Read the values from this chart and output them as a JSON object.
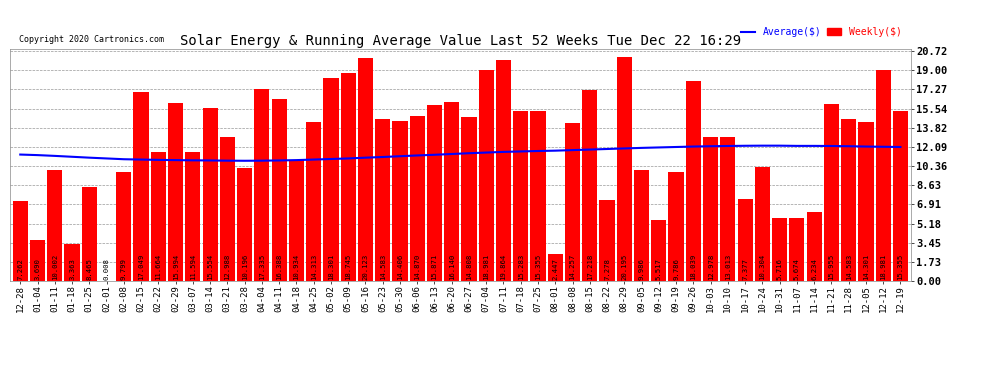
{
  "title": "Solar Energy & Running Average Value Last 52 Weeks Tue Dec 22 16:29",
  "copyright": "Copyright 2020 Cartronics.com",
  "legend_avg": "Average($)",
  "legend_weekly": "Weekly($)",
  "ytick_labels": [
    "0.00",
    "1.73",
    "3.45",
    "5.18",
    "6.91",
    "8.63",
    "10.36",
    "12.09",
    "13.82",
    "15.54",
    "17.27",
    "19.00",
    "20.72"
  ],
  "ytick_values": [
    0.0,
    1.73,
    3.45,
    5.18,
    6.91,
    8.63,
    10.36,
    12.09,
    13.82,
    15.54,
    17.27,
    19.0,
    20.72
  ],
  "categories": [
    "12-28",
    "01-04",
    "01-11",
    "01-18",
    "01-25",
    "02-01",
    "02-08",
    "02-15",
    "02-22",
    "02-29",
    "03-07",
    "03-14",
    "03-21",
    "03-28",
    "04-04",
    "04-11",
    "04-18",
    "04-25",
    "05-02",
    "05-09",
    "05-16",
    "05-23",
    "05-30",
    "06-06",
    "06-13",
    "06-20",
    "06-27",
    "07-04",
    "07-11",
    "07-18",
    "07-25",
    "08-01",
    "08-08",
    "08-15",
    "08-22",
    "08-29",
    "09-05",
    "09-12",
    "09-19",
    "09-26",
    "10-03",
    "10-10",
    "10-17",
    "10-24",
    "10-31",
    "11-07",
    "11-14",
    "11-21",
    "11-28",
    "12-05",
    "12-12",
    "12-19"
  ],
  "weekly_values": [
    7.262,
    3.69,
    10.002,
    3.363,
    8.465,
    0.008,
    9.799,
    17.049,
    11.664,
    15.994,
    11.594,
    15.554,
    12.988,
    10.196,
    17.335,
    16.388,
    10.934,
    14.313,
    18.301,
    18.745,
    20.123,
    14.583,
    14.406,
    14.87,
    15.871,
    16.14,
    14.808,
    18.981,
    19.864,
    15.283,
    15.355,
    2.447,
    14.257,
    17.218,
    7.278,
    20.195,
    9.986,
    5.517,
    9.786,
    18.039,
    12.978,
    13.013,
    7.377,
    10.304,
    5.716,
    5.674,
    6.234,
    15.955,
    14.583,
    14.301,
    18.981,
    15.355
  ],
  "average_values": [
    11.4,
    11.35,
    11.28,
    11.2,
    11.12,
    11.05,
    10.98,
    10.95,
    10.92,
    10.9,
    10.88,
    10.87,
    10.85,
    10.84,
    10.85,
    10.87,
    10.9,
    10.95,
    11.0,
    11.05,
    11.12,
    11.18,
    11.25,
    11.32,
    11.38,
    11.45,
    11.52,
    11.58,
    11.64,
    11.68,
    11.72,
    11.75,
    11.8,
    11.85,
    11.9,
    11.95,
    12.0,
    12.04,
    12.08,
    12.12,
    12.15,
    12.17,
    12.19,
    12.2,
    12.2,
    12.18,
    12.18,
    12.17,
    12.15,
    12.12,
    12.1,
    12.08
  ],
  "bar_color": "#ff0000",
  "avg_line_color": "#0000ff",
  "end_line_color": "#000000",
  "background_color": "#ffffff",
  "grid_color": "#999999",
  "title_fontsize": 10,
  "tick_fontsize": 7.5,
  "bar_value_fontsize": 5.2,
  "ymax": 20.72,
  "ymin": 0.0
}
